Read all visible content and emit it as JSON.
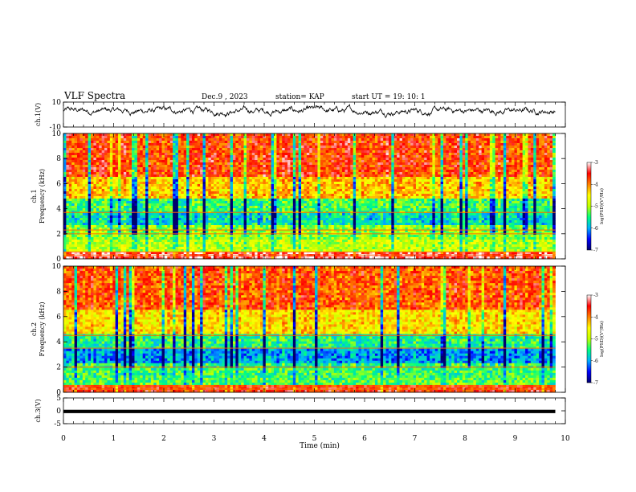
{
  "header": {
    "title": "VLF Spectra",
    "date": "Dec.9 , 2023",
    "station": "station= KAP",
    "start": "start  UT =   19: 10: 1"
  },
  "chart_data": [
    {
      "type": "line",
      "panel": "ch1-waveform",
      "ylabel": "ch.1(V)",
      "ylim": [
        -10,
        10
      ],
      "y_ticks": [
        "10",
        "-10"
      ],
      "x_range": [
        0,
        9.8
      ],
      "level_approx": [
        0,
        6
      ],
      "color": "#000000"
    },
    {
      "type": "heatmap",
      "panel": "ch1-spectrogram",
      "ylabel": "ch.1\nFrequency (kHz)",
      "ylim": [
        0,
        10
      ],
      "y_ticks": [
        "0",
        "2",
        "4",
        "6",
        "8",
        "10"
      ],
      "x_range_min": [
        0,
        9.8
      ],
      "colorbar": {
        "label": "log(PSD)(V²/Hz)",
        "range": [
          -7,
          -3
        ],
        "ticks": [
          "-3",
          "-4",
          "-5",
          "-6",
          "-7"
        ],
        "colors": [
          "#00006e",
          "#0000ff",
          "#00b0ff",
          "#00ff80",
          "#c0ff00",
          "#ffff00",
          "#ff8000",
          "#ff0000",
          "#ffffff"
        ]
      },
      "bands_khz": [
        [
          0,
          0.5,
          -3.3
        ],
        [
          0.5,
          1.5,
          -4.9
        ],
        [
          1.5,
          2.7,
          -5.1
        ],
        [
          2.7,
          3.7,
          -5.7
        ],
        [
          3.7,
          4.8,
          -5.4
        ],
        [
          4.8,
          6.5,
          -4.3
        ],
        [
          6.5,
          10,
          -3.7
        ]
      ],
      "lines_khz": [
        0.3,
        0.55,
        2.0,
        2.3,
        3.7
      ]
    },
    {
      "type": "heatmap",
      "panel": "ch2-spectrogram",
      "ylabel": "ch.2\nFrequency (kHz)",
      "ylim": [
        0,
        10
      ],
      "y_ticks": [
        "0",
        "2",
        "4",
        "6",
        "8",
        "10"
      ],
      "x_range_min": [
        0,
        9.8
      ],
      "colorbar": {
        "label": "log(PSD)(V²/Hz)",
        "range": [
          -7,
          -3
        ],
        "ticks": [
          "-3",
          "-4",
          "-5",
          "-6",
          "-7"
        ],
        "colors": [
          "#00006e",
          "#0000ff",
          "#00b0ff",
          "#00ff80",
          "#c0ff00",
          "#ffff00",
          "#ff8000",
          "#ff0000",
          "#ffffff"
        ]
      },
      "bands_khz": [
        [
          0,
          0.5,
          -3.6
        ],
        [
          0.5,
          1.2,
          -5.3
        ],
        [
          1.2,
          2.3,
          -5.4
        ],
        [
          2.3,
          3.5,
          -6.0
        ],
        [
          3.5,
          4.6,
          -5.5
        ],
        [
          4.6,
          6.5,
          -4.4
        ],
        [
          6.5,
          10,
          -3.8
        ]
      ],
      "lines_khz": [
        0.25,
        0.5,
        2.0,
        3.5,
        4.5
      ]
    },
    {
      "type": "line",
      "panel": "ch3-waveform",
      "ylabel": "ch.3(V)",
      "ylim": [
        -5,
        5
      ],
      "y_ticks": [
        "5",
        "0",
        "-5"
      ],
      "x_range": [
        0,
        9.8
      ],
      "band": [
        -0.9,
        0.4
      ],
      "color": "#000000"
    }
  ],
  "x_axis": {
    "label": "Time  (min)",
    "range": [
      0,
      10
    ],
    "ticks": [
      "0",
      "1",
      "2",
      "3",
      "4",
      "5",
      "6",
      "7",
      "8",
      "9",
      "10"
    ]
  }
}
